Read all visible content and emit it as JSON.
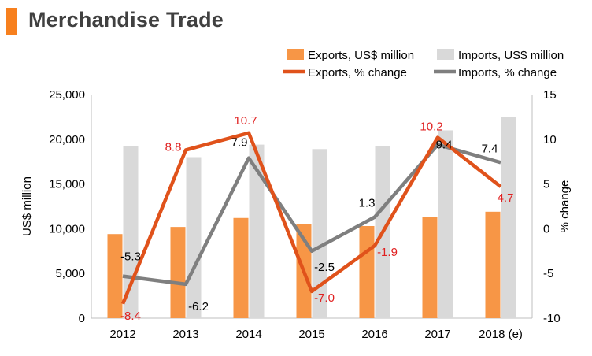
{
  "page_title": "Merchandise Trade",
  "colors": {
    "accent": "#f7801e",
    "exports_bar": "#f79646",
    "imports_bar": "#d9d9d9",
    "exports_line": "#e0521b",
    "imports_line": "#7f7f7f",
    "exports_label": "#e02020",
    "label": "#000000",
    "title_text": "#404040"
  },
  "chart_data": {
    "type": "bar",
    "combo": true,
    "categories": [
      "2012",
      "2013",
      "2014",
      "2015",
      "2016",
      "2017",
      "2018 (e)"
    ],
    "left_axis": {
      "label": "US$ million",
      "min": 0,
      "max": 25000,
      "ticks": [
        "0",
        "5,000",
        "10,000",
        "15,000",
        "20,000",
        "25,000"
      ]
    },
    "right_axis": {
      "label": "% change",
      "min": -10,
      "max": 15,
      "ticks": [
        "-10",
        "-5",
        "0",
        "5",
        "10",
        "15"
      ]
    },
    "grid": false,
    "legend_position": "top",
    "series": [
      {
        "name": "Exports, US$ million",
        "type": "bar",
        "axis": "left",
        "values": [
          9400,
          10200,
          11200,
          10500,
          10300,
          11300,
          11900
        ]
      },
      {
        "name": "Imports, US$ million",
        "type": "bar",
        "axis": "left",
        "values": [
          19200,
          18000,
          19400,
          18900,
          19200,
          21000,
          22500
        ]
      },
      {
        "name": "Exports, % change",
        "type": "line",
        "axis": "right",
        "values": [
          -8.4,
          8.8,
          10.7,
          -7.0,
          -1.9,
          10.2,
          4.7
        ],
        "labels": [
          "-8.4",
          "8.8",
          "10.7",
          "-7.0",
          "-1.9",
          "10.2",
          "4.7"
        ]
      },
      {
        "name": "Imports, % change",
        "type": "line",
        "axis": "right",
        "values": [
          -5.3,
          -6.2,
          7.9,
          -2.5,
          1.3,
          9.4,
          7.4
        ],
        "labels": [
          "-5.3",
          "-6.2",
          "7.9",
          "-2.5",
          "1.3",
          "9.4",
          "7.4"
        ]
      }
    ]
  }
}
